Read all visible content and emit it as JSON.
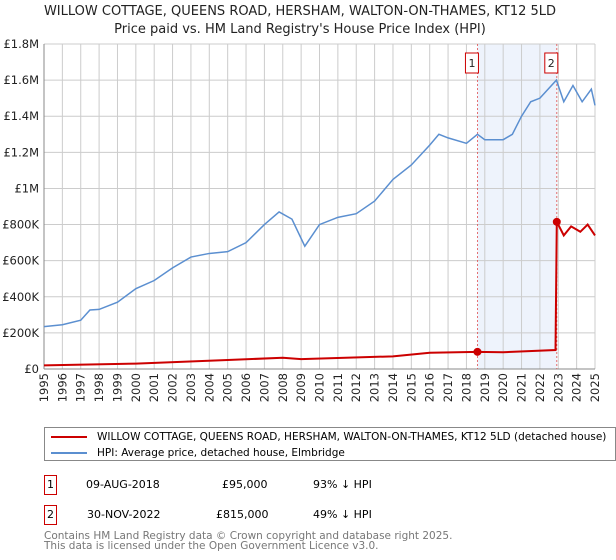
{
  "chart_data": {
    "type": "line",
    "title": "WILLOW COTTAGE, QUEENS ROAD, HERSHAM, WALTON-ON-THAMES, KT12 5LD",
    "subtitle": "Price paid vs. HM Land Registry's House Price Index (HPI)",
    "xlim": [
      1995,
      2025
    ],
    "ylim": [
      0,
      1800000
    ],
    "y_ticks": [
      {
        "v": 0,
        "label": "£0"
      },
      {
        "v": 200000,
        "label": "£200K"
      },
      {
        "v": 400000,
        "label": "£400K"
      },
      {
        "v": 600000,
        "label": "£600K"
      },
      {
        "v": 800000,
        "label": "£800K"
      },
      {
        "v": 1000000,
        "label": "£1M"
      },
      {
        "v": 1200000,
        "label": "£1.2M"
      },
      {
        "v": 1400000,
        "label": "£1.4M"
      },
      {
        "v": 1600000,
        "label": "£1.6M"
      },
      {
        "v": 1800000,
        "label": "£1.8M"
      }
    ],
    "x_ticks": [
      "1995",
      "1996",
      "1997",
      "1998",
      "1999",
      "2000",
      "2001",
      "2002",
      "2003",
      "2004",
      "2005",
      "2006",
      "2007",
      "2008",
      "2009",
      "2010",
      "2011",
      "2012",
      "2013",
      "2014",
      "2015",
      "2016",
      "2017",
      "2018",
      "2019",
      "2020",
      "2021",
      "2022",
      "2023",
      "2024",
      "2025"
    ],
    "grid": true,
    "series": [
      {
        "name": "WILLOW COTTAGE, QUEENS ROAD, HERSHAM, WALTON-ON-THAMES, KT12 5LD (detached house)",
        "color": "#cc0000",
        "x": [
          1995,
          2000,
          2005,
          2008,
          2009,
          2014,
          2016,
          2018.6,
          2020,
          2022.85,
          2022.92,
          2023.3,
          2023.7,
          2024.2,
          2024.6,
          2025
        ],
        "y": [
          20000,
          30000,
          50000,
          62000,
          55000,
          70000,
          90000,
          95000,
          93000,
          105000,
          815000,
          740000,
          790000,
          760000,
          800000,
          740000
        ]
      },
      {
        "name": "HPI: Average price, detached house, Elmbridge",
        "color": "#5b8fd0",
        "x": [
          1995,
          1996,
          1997,
          1997.5,
          1998,
          1999,
          2000,
          2001,
          2002,
          2003,
          2004,
          2005,
          2006,
          2007,
          2007.8,
          2008.5,
          2009.2,
          2010,
          2011,
          2012,
          2013,
          2014,
          2015,
          2016,
          2016.5,
          2017,
          2018,
          2018.6,
          2019,
          2020,
          2020.5,
          2021,
          2021.5,
          2022,
          2022.9,
          2023.3,
          2023.8,
          2024.3,
          2024.8,
          2025
        ],
        "y": [
          235000,
          245000,
          270000,
          327000,
          330000,
          370000,
          445000,
          490000,
          560000,
          620000,
          640000,
          650000,
          700000,
          800000,
          870000,
          830000,
          680000,
          800000,
          840000,
          860000,
          930000,
          1050000,
          1130000,
          1240000,
          1300000,
          1280000,
          1250000,
          1300000,
          1270000,
          1270000,
          1300000,
          1400000,
          1480000,
          1500000,
          1600000,
          1480000,
          1570000,
          1480000,
          1550000,
          1460000
        ]
      }
    ],
    "sales": [
      {
        "id": "1",
        "x": 2018.6,
        "y": 95000,
        "date": "09-AUG-2018",
        "price": "£95,000",
        "hpi": "93% ↓ HPI"
      },
      {
        "id": "2",
        "x": 2022.92,
        "y": 815000,
        "date": "30-NOV-2022",
        "price": "£815,000",
        "hpi": "49% ↓ HPI"
      }
    ],
    "legend_placement": "below"
  },
  "footer": [
    "Contains HM Land Registry data © Crown copyright and database right 2025.",
    "This data is licensed under the Open Government Licence v3.0."
  ]
}
